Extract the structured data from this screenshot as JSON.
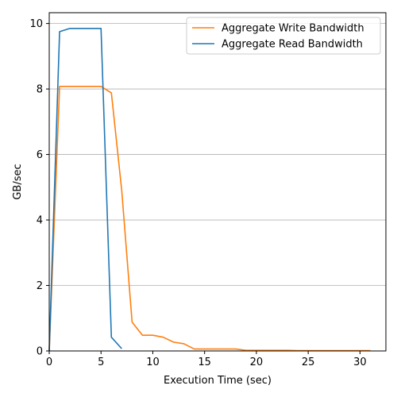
{
  "chart_data": {
    "type": "line",
    "xlabel": "Execution Time (sec)",
    "ylabel": "GB/sec",
    "xlim": [
      0,
      32.5
    ],
    "ylim": [
      0,
      10.33
    ],
    "xticks": [
      0,
      5,
      10,
      15,
      20,
      25,
      30
    ],
    "yticks": [
      0,
      2,
      4,
      6,
      8,
      10
    ],
    "grid": "y-major",
    "legend_position": "top-right",
    "series": [
      {
        "name": "Aggregate Write Bandwidth",
        "color": "#ff7f0e",
        "x": [
          0,
          1,
          2,
          3,
          4,
          5,
          6,
          7,
          8,
          9,
          10,
          11,
          12,
          13,
          14,
          15,
          16,
          17,
          18,
          19,
          20,
          21,
          22,
          23,
          24,
          25,
          26,
          27,
          28,
          29,
          30,
          31
        ],
        "y": [
          0,
          8.08,
          8.08,
          8.08,
          8.08,
          8.08,
          7.88,
          4.9,
          0.88,
          0.48,
          0.48,
          0.42,
          0.27,
          0.22,
          0.06,
          0.06,
          0.06,
          0.06,
          0.06,
          0.02,
          0.02,
          0.02,
          0.02,
          0.02,
          0.01,
          0.01,
          0.01,
          0.01,
          0.01,
          0.01,
          0.01,
          0.01
        ]
      },
      {
        "name": "Aggregate Read Bandwidth",
        "color": "#1f77b4",
        "x": [
          0,
          1,
          2,
          3,
          4,
          5,
          6,
          7
        ],
        "y": [
          0,
          9.75,
          9.85,
          9.85,
          9.85,
          9.85,
          0.42,
          0.07
        ]
      }
    ]
  }
}
